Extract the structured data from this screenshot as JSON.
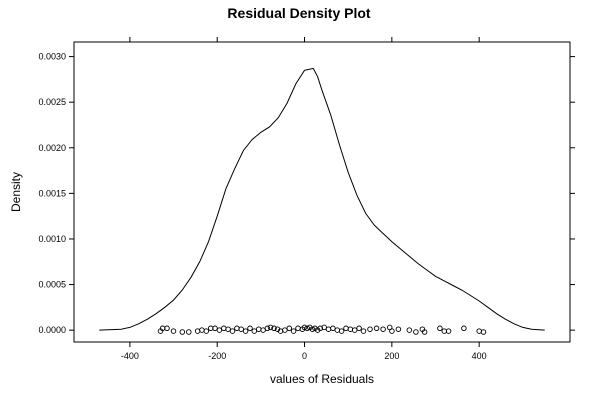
{
  "chart_data": {
    "type": "line",
    "title": "Residual Density Plot",
    "xlabel": "values of Residuals",
    "ylabel": "Density",
    "xlim": [
      -528,
      608
    ],
    "ylim": [
      -0.00013,
      0.00316
    ],
    "grid": false,
    "legend": "none",
    "x_ticks": [
      -400,
      -200,
      0,
      200,
      400
    ],
    "x_tick_labels": [
      "-400",
      "-200",
      "0",
      "200",
      "400"
    ],
    "y_ticks": [
      0,
      0.0005,
      0.001,
      0.0015,
      0.002,
      0.0025,
      0.003
    ],
    "y_tick_labels": [
      "0.0000",
      "0.0005",
      "0.0010",
      "0.0015",
      "0.0020",
      "0.0025",
      "0.0030"
    ],
    "series": [
      {
        "x": [
          -470,
          -420,
          -400,
          -380,
          -360,
          -340,
          -320,
          -300,
          -280,
          -260,
          -240,
          -220,
          -200,
          -180,
          -160,
          -140,
          -120,
          -100,
          -80,
          -60,
          -40,
          -20,
          0,
          10,
          20,
          30,
          40,
          60,
          80,
          100,
          120,
          140,
          160,
          180,
          200,
          220,
          240,
          260,
          280,
          300,
          320,
          340,
          360,
          380,
          400,
          420,
          440,
          460,
          480,
          500,
          520,
          550
        ],
        "y": [
          0.0,
          1e-05,
          3e-05,
          7e-05,
          0.00012,
          0.00018,
          0.00025,
          0.00033,
          0.00044,
          0.00058,
          0.00075,
          0.00097,
          0.00125,
          0.00155,
          0.00177,
          0.00197,
          0.00209,
          0.00217,
          0.00223,
          0.00233,
          0.00249,
          0.0027,
          0.00285,
          0.00286,
          0.00287,
          0.00278,
          0.00263,
          0.00236,
          0.00203,
          0.00173,
          0.00148,
          0.00128,
          0.00115,
          0.00106,
          0.00097,
          0.00089,
          0.00081,
          0.00073,
          0.00066,
          0.00059,
          0.00054,
          0.00049,
          0.00044,
          0.00038,
          0.00032,
          0.00025,
          0.00018,
          0.00012,
          7e-05,
          3e-05,
          1e-05,
          0.0
        ]
      }
    ],
    "rug": [
      {
        "x": -325,
        "y": 2e-05
      },
      {
        "x": -315,
        "y": 2e-05
      },
      {
        "x": -330,
        "y": -1e-05
      },
      {
        "x": -300,
        "y": -1e-05
      },
      {
        "x": -280,
        "y": -2e-05
      },
      {
        "x": -265,
        "y": -2e-05
      },
      {
        "x": -245,
        "y": -1e-05
      },
      {
        "x": -235,
        "y": 0.0
      },
      {
        "x": -225,
        "y": -1e-05
      },
      {
        "x": -215,
        "y": 2e-05
      },
      {
        "x": -205,
        "y": 2e-05
      },
      {
        "x": -195,
        "y": 0.0
      },
      {
        "x": -185,
        "y": 2e-05
      },
      {
        "x": -175,
        "y": 1e-05
      },
      {
        "x": -165,
        "y": -1e-05
      },
      {
        "x": -155,
        "y": 2e-05
      },
      {
        "x": -145,
        "y": 1e-05
      },
      {
        "x": -135,
        "y": -1e-05
      },
      {
        "x": -125,
        "y": 2e-05
      },
      {
        "x": -115,
        "y": -1e-05
      },
      {
        "x": -105,
        "y": 1e-05
      },
      {
        "x": -95,
        "y": 0.0
      },
      {
        "x": -85,
        "y": 2e-05
      },
      {
        "x": -78,
        "y": 3e-05
      },
      {
        "x": -70,
        "y": 2e-05
      },
      {
        "x": -62,
        "y": 1e-05
      },
      {
        "x": -55,
        "y": -1e-05
      },
      {
        "x": -45,
        "y": 0.0
      },
      {
        "x": -35,
        "y": 2e-05
      },
      {
        "x": -25,
        "y": -1e-05
      },
      {
        "x": -15,
        "y": 2e-05
      },
      {
        "x": -5,
        "y": 1e-05
      },
      {
        "x": 0,
        "y": 3e-05
      },
      {
        "x": 6,
        "y": 2e-05
      },
      {
        "x": 12,
        "y": 3e-05
      },
      {
        "x": 18,
        "y": 1e-05
      },
      {
        "x": 24,
        "y": 2e-05
      },
      {
        "x": 30,
        "y": 0.0
      },
      {
        "x": 36,
        "y": 2e-05
      },
      {
        "x": 45,
        "y": 3e-05
      },
      {
        "x": 55,
        "y": 1e-05
      },
      {
        "x": 65,
        "y": 2e-05
      },
      {
        "x": 75,
        "y": 0.0
      },
      {
        "x": 85,
        "y": -1e-05
      },
      {
        "x": 95,
        "y": 2e-05
      },
      {
        "x": 105,
        "y": 1e-05
      },
      {
        "x": 115,
        "y": 0.0
      },
      {
        "x": 125,
        "y": 2e-05
      },
      {
        "x": 135,
        "y": -1e-05
      },
      {
        "x": 150,
        "y": 1e-05
      },
      {
        "x": 165,
        "y": 2e-05
      },
      {
        "x": 180,
        "y": 1e-05
      },
      {
        "x": 195,
        "y": 3e-05
      },
      {
        "x": 200,
        "y": -1e-05
      },
      {
        "x": 215,
        "y": 1e-05
      },
      {
        "x": 240,
        "y": 0.0
      },
      {
        "x": 255,
        "y": -2e-05
      },
      {
        "x": 270,
        "y": 1e-05
      },
      {
        "x": 275,
        "y": -2e-05
      },
      {
        "x": 310,
        "y": 2e-05
      },
      {
        "x": 320,
        "y": -1e-05
      },
      {
        "x": 330,
        "y": -1e-05
      },
      {
        "x": 365,
        "y": 2e-05
      },
      {
        "x": 400,
        "y": -1e-05
      },
      {
        "x": 410,
        "y": -2e-05
      }
    ]
  }
}
